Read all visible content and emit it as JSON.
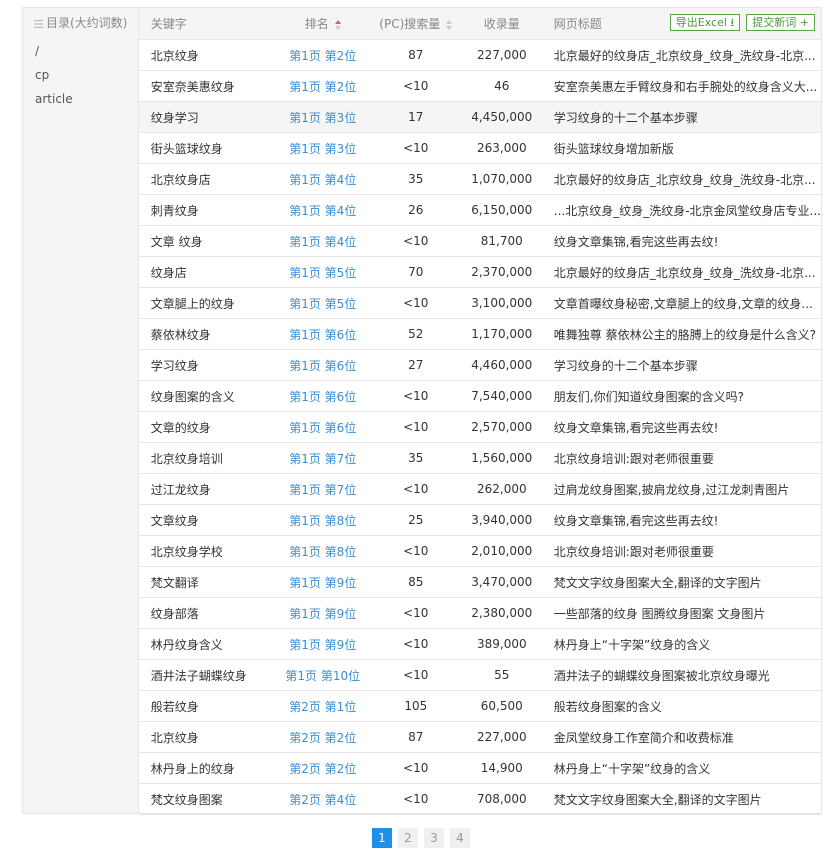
{
  "sidebar": {
    "header": "目录(大约词数)",
    "items": [
      "/",
      "cp",
      "article"
    ]
  },
  "table": {
    "headers": {
      "keyword": "关键字",
      "rank": "排名",
      "pc": "(PC)搜索量",
      "indexed": "收录量",
      "title": "网页标题"
    },
    "export_label": "导出Excel ⭳",
    "submit_label": "提交新词 +",
    "rows": [
      [
        "北京纹身",
        "第1页 第2位",
        "87",
        "227,000",
        "北京最好的纹身店_北京纹身_纹身_洗纹身-北京..."
      ],
      [
        "安室奈美惠纹身",
        "第1页 第2位",
        "<10",
        "46",
        "安室奈美惠左手臂纹身和右手腕处的纹身含义大..."
      ],
      [
        "纹身学习",
        "第1页 第3位",
        "17",
        "4,450,000",
        "学习纹身的十二个基本步骤"
      ],
      [
        "街头篮球纹身",
        "第1页 第3位",
        "<10",
        "263,000",
        "街头篮球纹身增加新版"
      ],
      [
        "北京纹身店",
        "第1页 第4位",
        "35",
        "1,070,000",
        "北京最好的纹身店_北京纹身_纹身_洗纹身-北京..."
      ],
      [
        "刺青纹身",
        "第1页 第4位",
        "26",
        "6,150,000",
        "...北京纹身_纹身_洗纹身-北京金凤堂纹身店专业..."
      ],
      [
        "文章 纹身",
        "第1页 第4位",
        "<10",
        "81,700",
        "纹身文章集锦,看完这些再去纹!"
      ],
      [
        "纹身店",
        "第1页 第5位",
        "70",
        "2,370,000",
        "北京最好的纹身店_北京纹身_纹身_洗纹身-北京..."
      ],
      [
        "文章腿上的纹身",
        "第1页 第5位",
        "<10",
        "3,100,000",
        "文章首曝纹身秘密,文章腿上的纹身,文章的纹身..."
      ],
      [
        "蔡依林纹身",
        "第1页 第6位",
        "52",
        "1,170,000",
        "唯舞独尊 蔡依林公主的胳膊上的纹身是什么含义?"
      ],
      [
        "学习纹身",
        "第1页 第6位",
        "27",
        "4,460,000",
        "学习纹身的十二个基本步骤"
      ],
      [
        "纹身图案的含义",
        "第1页 第6位",
        "<10",
        "7,540,000",
        "朋友们,你们知道纹身图案的含义吗?"
      ],
      [
        "文章的纹身",
        "第1页 第6位",
        "<10",
        "2,570,000",
        "纹身文章集锦,看完这些再去纹!"
      ],
      [
        "北京纹身培训",
        "第1页 第7位",
        "35",
        "1,560,000",
        "北京纹身培训:跟对老师很重要"
      ],
      [
        "过江龙纹身",
        "第1页 第7位",
        "<10",
        "262,000",
        "过肩龙纹身图案,披肩龙纹身,过江龙刺青图片"
      ],
      [
        "文章纹身",
        "第1页 第8位",
        "25",
        "3,940,000",
        "纹身文章集锦,看完这些再去纹!"
      ],
      [
        "北京纹身学校",
        "第1页 第8位",
        "<10",
        "2,010,000",
        "北京纹身培训:跟对老师很重要"
      ],
      [
        "梵文翻译",
        "第1页 第9位",
        "85",
        "3,470,000",
        "梵文文字纹身图案大全,翻译的文字图片"
      ],
      [
        "纹身部落",
        "第1页 第9位",
        "<10",
        "2,380,000",
        "一些部落的纹身 图腾纹身图案 文身图片"
      ],
      [
        "林丹纹身含义",
        "第1页 第9位",
        "<10",
        "389,000",
        "林丹身上“十字架”纹身的含义"
      ],
      [
        "酒井法子蝴蝶纹身",
        "第1页 第10位",
        "<10",
        "55",
        "酒井法子的蝴蝶纹身图案被北京纹身曝光"
      ],
      [
        "般若纹身",
        "第2页 第1位",
        "105",
        "60,500",
        "般若纹身图案的含义"
      ],
      [
        "北京纹身",
        "第2页 第2位",
        "87",
        "227,000",
        "金凤堂纹身工作室简介和收费标准"
      ],
      [
        "林丹身上的纹身",
        "第2页 第2位",
        "<10",
        "14,900",
        "林丹身上“十字架”纹身的含义"
      ],
      [
        "梵文纹身图案",
        "第2页 第4位",
        "<10",
        "708,000",
        "梵文文字纹身图案大全,翻译的文字图片"
      ]
    ]
  },
  "pagination": {
    "pages": [
      "1",
      "2",
      "3",
      "4"
    ],
    "current": "1"
  },
  "colors": {
    "link": "#3a8fd6",
    "accent": "#1e90e8",
    "button": "#4a9a3a"
  }
}
